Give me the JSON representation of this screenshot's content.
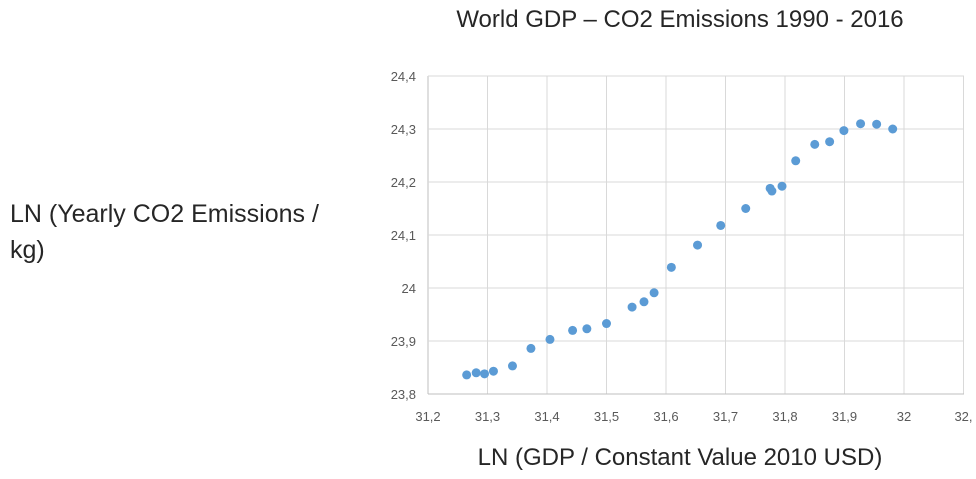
{
  "chart_data": {
    "type": "scatter",
    "title": "World GDP – CO2 Emissions 1990 - 2016",
    "xlabel": "LN (GDP / Constant Value 2010 USD)",
    "ylabel": "LN (Yearly CO2 Emissions / kg)",
    "xlim": [
      31.2,
      32.0
    ],
    "ylim": [
      23.8,
      24.4
    ],
    "x_ticks": [
      "31,2",
      "31,3",
      "31,4",
      "31,5",
      "31,6",
      "31,7",
      "31,8",
      "31,9",
      "32",
      "32,"
    ],
    "y_ticks": [
      "23,8",
      "23,9",
      "24",
      "24,1",
      "24,2",
      "24,3",
      "24,4"
    ],
    "grid": true,
    "legend": "none",
    "marker_color": "#5B9BD5",
    "points": [
      {
        "x": 31.265,
        "y": 23.836
      },
      {
        "x": 31.281,
        "y": 23.84
      },
      {
        "x": 31.295,
        "y": 23.838
      },
      {
        "x": 31.31,
        "y": 23.843
      },
      {
        "x": 31.342,
        "y": 23.853
      },
      {
        "x": 31.373,
        "y": 23.886
      },
      {
        "x": 31.405,
        "y": 23.903
      },
      {
        "x": 31.443,
        "y": 23.92
      },
      {
        "x": 31.467,
        "y": 23.923
      },
      {
        "x": 31.5,
        "y": 23.933
      },
      {
        "x": 31.543,
        "y": 23.964
      },
      {
        "x": 31.563,
        "y": 23.974
      },
      {
        "x": 31.58,
        "y": 23.991
      },
      {
        "x": 31.609,
        "y": 24.039
      },
      {
        "x": 31.653,
        "y": 24.081
      },
      {
        "x": 31.692,
        "y": 24.118
      },
      {
        "x": 31.734,
        "y": 24.15
      },
      {
        "x": 31.775,
        "y": 24.188
      },
      {
        "x": 31.778,
        "y": 24.183
      },
      {
        "x": 31.795,
        "y": 24.192
      },
      {
        "x": 31.818,
        "y": 24.24
      },
      {
        "x": 31.85,
        "y": 24.271
      },
      {
        "x": 31.875,
        "y": 24.276
      },
      {
        "x": 31.899,
        "y": 24.297
      },
      {
        "x": 31.927,
        "y": 24.31
      },
      {
        "x": 31.954,
        "y": 24.309
      },
      {
        "x": 31.981,
        "y": 24.3
      }
    ]
  }
}
